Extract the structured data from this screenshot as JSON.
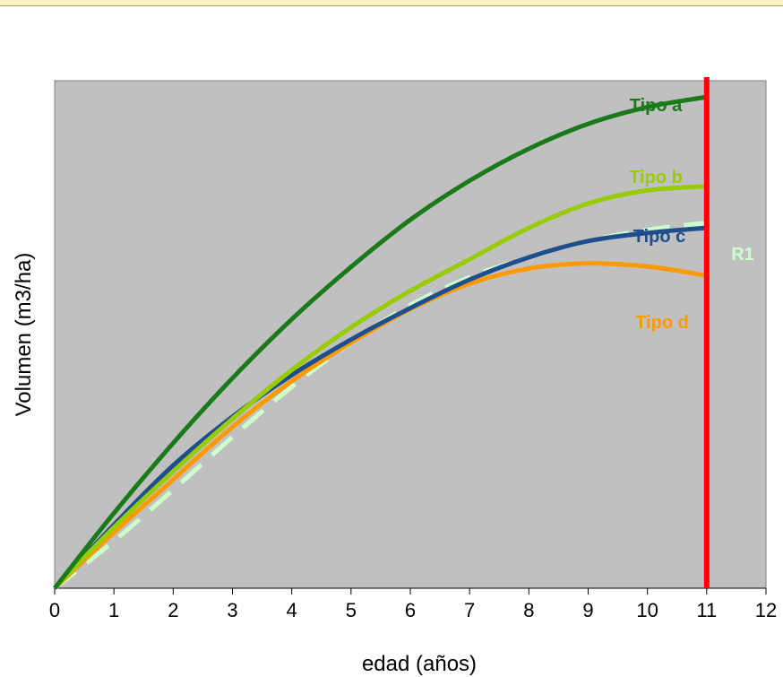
{
  "chart_data": {
    "type": "line",
    "xlabel": "edad (años)",
    "ylabel": "Volumen (m3/ha)",
    "xlim": [
      0,
      12
    ],
    "ylim": [
      0,
      1
    ],
    "x_ticks": [
      0,
      1,
      2,
      3,
      4,
      5,
      6,
      7,
      8,
      9,
      10,
      11,
      12
    ],
    "y_ticks_shown": false,
    "grid": false,
    "background": "#c0c0c0",
    "reference_line": {
      "x": 11,
      "color": "#ff0000"
    },
    "series": [
      {
        "name": "Tipo a",
        "color": "#1a7a1a",
        "dashed": false,
        "x": [
          0,
          1,
          2,
          3,
          4,
          5,
          6,
          7,
          8,
          9,
          10,
          11
        ],
        "y": [
          0,
          0.148,
          0.286,
          0.414,
          0.53,
          0.633,
          0.726,
          0.803,
          0.866,
          0.915,
          0.948,
          0.968
        ]
      },
      {
        "name": "Tipo b",
        "color": "#99cc00",
        "dashed": false,
        "x": [
          0,
          1,
          2,
          3,
          4,
          5,
          6,
          7,
          8,
          9,
          10,
          11
        ],
        "y": [
          0,
          0.12,
          0.23,
          0.334,
          0.43,
          0.514,
          0.586,
          0.648,
          0.71,
          0.758,
          0.784,
          0.792
        ]
      },
      {
        "name": "Tipo c",
        "color": "#1f4e8c",
        "dashed": false,
        "x": [
          0,
          1,
          2,
          3,
          4,
          5,
          6,
          7,
          8,
          9,
          10,
          11
        ],
        "y": [
          0,
          0.125,
          0.242,
          0.338,
          0.42,
          0.49,
          0.552,
          0.608,
          0.652,
          0.684,
          0.7,
          0.71
        ]
      },
      {
        "name": "R1",
        "color": "#ccffcc",
        "dashed": true,
        "x": [
          0,
          1,
          2,
          3,
          4,
          5,
          6,
          7,
          8,
          9,
          10,
          11
        ],
        "y": [
          0,
          0.093,
          0.194,
          0.298,
          0.397,
          0.484,
          0.558,
          0.613,
          0.652,
          0.684,
          0.706,
          0.72
        ]
      },
      {
        "name": "Tipo d",
        "color": "#ff9900",
        "dashed": false,
        "x": [
          0,
          1,
          2,
          3,
          4,
          5,
          6,
          7,
          8,
          9,
          10,
          11
        ],
        "y": [
          0,
          0.11,
          0.214,
          0.318,
          0.408,
          0.484,
          0.55,
          0.6,
          0.63,
          0.64,
          0.634,
          0.616
        ]
      }
    ]
  }
}
